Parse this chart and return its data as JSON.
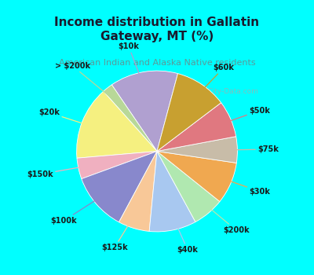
{
  "title": "Income distribution in Gallatin\nGateway, MT (%)",
  "subtitle": "American Indian and Alaska Native residents",
  "labels": [
    "$10k",
    "> $200k",
    "$20k",
    "$150k",
    "$100k",
    "$125k",
    "$40k",
    "$200k",
    "$30k",
    "$75k",
    "$50k",
    "$60k"
  ],
  "sizes": [
    13,
    2,
    14,
    4,
    11,
    6,
    9,
    6,
    8,
    5,
    7,
    10
  ],
  "colors": [
    "#b0a0d0",
    "#b8d898",
    "#f5f080",
    "#f0b0c0",
    "#8888cc",
    "#f8c898",
    "#a8c8f0",
    "#b0e8b0",
    "#f0a850",
    "#c8bca8",
    "#e07880",
    "#c8a030"
  ],
  "title_color": "#1a1a2e",
  "subtitle_color": "#5a9a9a",
  "bg_top": "#00ffff",
  "chart_bg_color": "#e0f0e8",
  "watermark": "City-Data.com",
  "startangle": 75
}
